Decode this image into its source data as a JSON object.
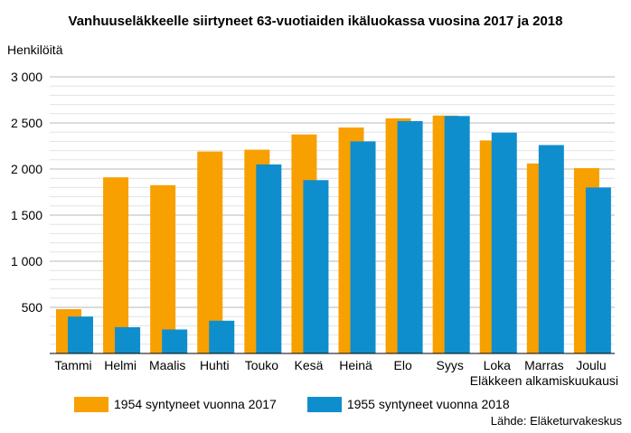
{
  "chart_data": {
    "type": "bar",
    "title": "Vanhuuseläkkeelle siirtyneet 63-vuotiaiden ikäluokassa vuosina 2017 ja 2018",
    "ylabel": "Henkilöitä",
    "xlabel": "Eläkkeen alkamiskuukausi",
    "source": "Lähde: Eläketurvakeskus",
    "categories": [
      "Tammi",
      "Helmi",
      "Maalis",
      "Huhti",
      "Touko",
      "Kesä",
      "Heinä",
      "Elo",
      "Syys",
      "Loka",
      "Marras",
      "Joulu"
    ],
    "series": [
      {
        "name": "1954 syntyneet vuonna 2017",
        "color": "#f7a000",
        "values": [
          480,
          1910,
          1825,
          2190,
          2210,
          2375,
          2450,
          2550,
          2580,
          2310,
          2060,
          2010
        ]
      },
      {
        "name": "1955 syntyneet vuonna 2018",
        "color": "#0f8ece",
        "values": [
          400,
          285,
          260,
          355,
          2050,
          1880,
          2300,
          2520,
          2575,
          2395,
          2260,
          1800
        ]
      }
    ],
    "ylim": [
      0,
      3000
    ],
    "yticks": [
      500,
      1000,
      1500,
      2000,
      2500,
      3000
    ],
    "ytick_labels": [
      "500",
      "1 000",
      "1 500",
      "2 000",
      "2 500",
      "3 000"
    ],
    "grid": true,
    "legend_position": "bottom"
  }
}
